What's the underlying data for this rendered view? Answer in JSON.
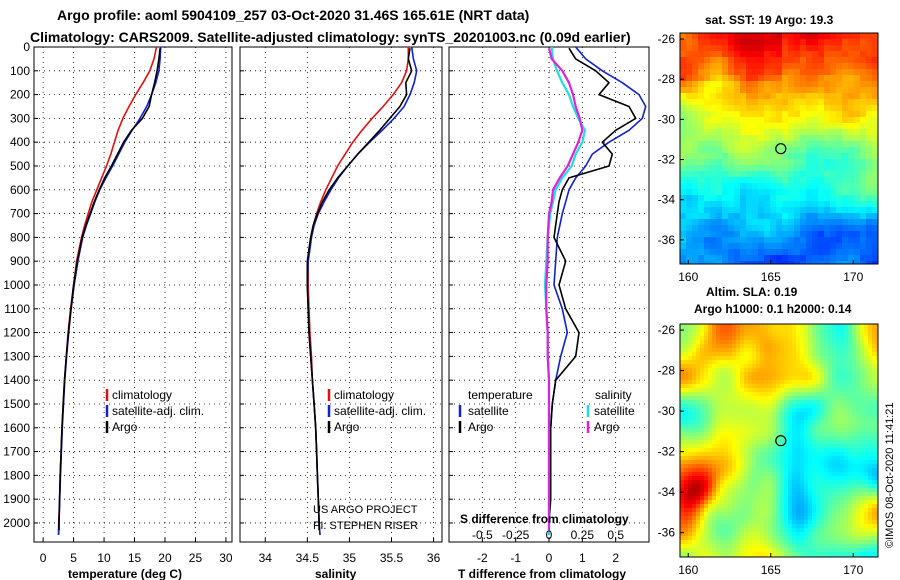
{
  "header": {
    "line1": "Argo profile: aoml 5904109_257 03-Oct-2020 31.46S 165.61E (NRT data)",
    "line2": "Climatology: CARS2009. Satellite-adjusted climatology: synTS_20201003.nc (0.09d earlier)"
  },
  "colors": {
    "climatology": "#dd1111",
    "satellite": "#1122cc",
    "argo": "#000000",
    "salinity_satellite": "#22dddd",
    "salinity_argo": "#dd22dd"
  },
  "depth_axis": {
    "ticks": [
      "0",
      "100",
      "200",
      "300",
      "400",
      "500",
      "600",
      "700",
      "800",
      "900",
      "1000",
      "1100",
      "1200",
      "1300",
      "1400",
      "1500",
      "1600",
      "1700",
      "1800",
      "1900",
      "2000"
    ],
    "range": [
      0,
      2080
    ]
  },
  "credits": {
    "project": "US ARGO PROJECT",
    "pi": "PI: STEPHEN RISER"
  },
  "chart_data": [
    {
      "type": "line",
      "panel": "temperature",
      "xlabel": "temperature (deg C)",
      "xlim": [
        -1.5,
        31
      ],
      "xticks": [
        "0",
        "5",
        "10",
        "15",
        "20",
        "25",
        "30"
      ],
      "ylim": [
        2080,
        0
      ],
      "legend": {
        "labels": [
          "climatology",
          "satellite-adj. clim.",
          "Argo"
        ]
      },
      "series": [
        {
          "name": "climatology",
          "color_key": "climatology",
          "depth": [
            0,
            50,
            100,
            150,
            200,
            250,
            300,
            350,
            400,
            450,
            500,
            550,
            600,
            650,
            700,
            750,
            800,
            900,
            1000,
            1100,
            1200,
            1300,
            1400,
            1500,
            1600,
            1700,
            1800,
            1900,
            2000,
            2050
          ],
          "values": [
            18.6,
            18.2,
            17.5,
            16.4,
            15.2,
            14.1,
            13.1,
            12.3,
            11.7,
            11.1,
            10.4,
            9.6,
            8.8,
            8.0,
            7.4,
            6.8,
            6.3,
            5.5,
            5.0,
            4.5,
            4.1,
            3.8,
            3.5,
            3.3,
            3.1,
            2.95,
            2.8,
            2.7,
            2.55,
            2.5
          ]
        },
        {
          "name": "satellite-adj. clim.",
          "color_key": "satellite",
          "depth": [
            0,
            50,
            100,
            150,
            200,
            250,
            300,
            350,
            400,
            450,
            500,
            550,
            600,
            650,
            700,
            750,
            800,
            900,
            1000,
            1100,
            1200,
            1300,
            1400,
            1500,
            1600,
            1700,
            1800,
            1900,
            2000,
            2050
          ],
          "values": [
            19.3,
            19.2,
            19.0,
            18.5,
            17.8,
            17.0,
            15.9,
            14.6,
            13.4,
            12.4,
            11.4,
            10.3,
            9.3,
            8.5,
            7.8,
            7.1,
            6.5,
            5.7,
            5.1,
            4.6,
            4.2,
            3.85,
            3.55,
            3.35,
            3.15,
            3.0,
            2.85,
            2.72,
            2.6,
            2.55
          ]
        },
        {
          "name": "Argo",
          "color_key": "argo",
          "depth": [
            5,
            50,
            100,
            150,
            200,
            250,
            300,
            350,
            400,
            450,
            500,
            550,
            600,
            650,
            700,
            750,
            800,
            900,
            1000,
            1100,
            1200,
            1300,
            1400,
            1500,
            1600,
            1700,
            1800,
            1900,
            2000,
            2030
          ],
          "values": [
            19.2,
            19.0,
            18.7,
            18.3,
            17.8,
            17.4,
            16.3,
            14.5,
            13.2,
            12.2,
            11.2,
            10.1,
            9.2,
            8.4,
            7.7,
            7.0,
            6.4,
            5.6,
            5.0,
            4.55,
            4.15,
            3.8,
            3.5,
            3.3,
            3.1,
            2.95,
            2.8,
            2.7,
            2.6,
            2.6
          ]
        }
      ]
    },
    {
      "type": "line",
      "panel": "salinity",
      "xlabel": "salinity",
      "xlim": [
        33.7,
        36.1
      ],
      "xticks": [
        "34",
        "34.5",
        "35",
        "35.5",
        "36"
      ],
      "ylim": [
        2080,
        0
      ],
      "legend": {
        "labels": [
          "climatology",
          "satellite-adj. clim.",
          "Argo"
        ]
      },
      "series": [
        {
          "name": "climatology",
          "color_key": "climatology",
          "depth": [
            0,
            50,
            100,
            150,
            200,
            250,
            300,
            350,
            400,
            450,
            500,
            550,
            600,
            650,
            700,
            750,
            800,
            850,
            900,
            1000,
            1100,
            1200,
            1300,
            1400,
            1500,
            1600,
            1700,
            1800,
            1900,
            2000,
            2050
          ],
          "values": [
            35.7,
            35.7,
            35.68,
            35.62,
            35.52,
            35.4,
            35.27,
            35.15,
            35.04,
            34.95,
            34.86,
            34.79,
            34.72,
            34.66,
            34.61,
            34.57,
            34.54,
            34.52,
            34.51,
            34.51,
            34.52,
            34.53,
            34.55,
            34.56,
            34.58,
            34.6,
            34.61,
            34.62,
            34.63,
            34.64,
            34.65
          ]
        },
        {
          "name": "satellite-adj. clim.",
          "color_key": "satellite",
          "depth": [
            0,
            50,
            100,
            150,
            200,
            250,
            300,
            350,
            400,
            450,
            500,
            550,
            600,
            650,
            700,
            750,
            800,
            850,
            900,
            1000,
            1100,
            1200,
            1300,
            1400,
            1500,
            1600,
            1700,
            1800,
            1900,
            2000,
            2050
          ],
          "values": [
            35.74,
            35.76,
            35.8,
            35.77,
            35.72,
            35.65,
            35.53,
            35.39,
            35.24,
            35.1,
            34.98,
            34.87,
            34.78,
            34.7,
            34.63,
            34.58,
            34.55,
            34.53,
            34.51,
            34.5,
            34.51,
            34.52,
            34.54,
            34.56,
            34.58,
            34.6,
            34.61,
            34.62,
            34.63,
            34.64,
            34.65
          ]
        },
        {
          "name": "Argo",
          "color_key": "argo",
          "depth": [
            5,
            50,
            100,
            150,
            200,
            250,
            300,
            350,
            400,
            450,
            500,
            550,
            600,
            650,
            700,
            750,
            800,
            850,
            900,
            1000,
            1100,
            1200,
            1300,
            1400,
            1500,
            1600,
            1700,
            1800,
            1900,
            2000,
            2030
          ],
          "values": [
            35.72,
            35.7,
            35.74,
            35.67,
            35.68,
            35.6,
            35.48,
            35.36,
            35.23,
            35.1,
            34.98,
            34.86,
            34.76,
            34.68,
            34.62,
            34.57,
            34.54,
            34.52,
            34.5,
            34.5,
            34.51,
            34.52,
            34.54,
            34.56,
            34.58,
            34.6,
            34.61,
            34.62,
            34.63,
            34.64,
            34.64
          ]
        }
      ]
    },
    {
      "type": "line",
      "panel": "difference",
      "xlabel": "T difference from climatology",
      "xlabel2": "S difference from climatology",
      "xlim": [
        -3.0,
        3.0
      ],
      "xticks": [
        "-2",
        "-1",
        "0",
        "1",
        "2"
      ],
      "xticks2": [
        "-0.5",
        "-0.25",
        "0",
        "0.25",
        "0.5"
      ],
      "ylim": [
        2080,
        0
      ],
      "legend": {
        "temperature_header": "temperature",
        "salinity_header": "salinity",
        "temperature_labels": [
          "satellite",
          "Argo"
        ],
        "salinity_labels": [
          "satellite",
          "Argo"
        ]
      },
      "series": [
        {
          "name": "temperature satellite",
          "color_key": "satellite",
          "depth": [
            0,
            50,
            100,
            150,
            200,
            250,
            300,
            350,
            400,
            450,
            500,
            550,
            600,
            650,
            700,
            800,
            900,
            1000,
            1100,
            1200,
            1300,
            1400,
            1500,
            1600,
            1700,
            1800,
            1900,
            2000,
            2050
          ],
          "values": [
            0.8,
            1.1,
            1.6,
            2.2,
            2.7,
            2.9,
            2.8,
            2.4,
            1.8,
            1.3,
            1.1,
            0.8,
            0.6,
            0.5,
            0.4,
            0.25,
            0.2,
            0.15,
            0.4,
            0.55,
            0.35,
            0.2,
            0.1,
            0.05,
            0.05,
            0.05,
            0.0,
            0.0,
            0.0
          ]
        },
        {
          "name": "temperature Argo",
          "color_key": "argo",
          "depth": [
            5,
            50,
            100,
            150,
            200,
            250,
            300,
            350,
            400,
            450,
            500,
            550,
            600,
            650,
            700,
            800,
            900,
            1000,
            1100,
            1200,
            1300,
            1400,
            1500,
            1600,
            1700,
            1800,
            1900,
            2000,
            2030
          ],
          "values": [
            0.6,
            0.8,
            1.4,
            1.8,
            1.5,
            2.4,
            2.6,
            2.0,
            1.6,
            1.9,
            1.8,
            0.6,
            0.4,
            0.3,
            0.25,
            0.15,
            0.5,
            0.3,
            0.5,
            0.9,
            0.8,
            0.2,
            0.1,
            0.05,
            0.05,
            0.05,
            0.05,
            0.0,
            0.0
          ]
        },
        {
          "name": "salinity satellite",
          "color_key": "salinity_satellite",
          "depth": [
            0,
            50,
            100,
            150,
            200,
            250,
            300,
            350,
            400,
            450,
            500,
            550,
            600,
            650,
            700,
            800,
            900,
            1000,
            1100,
            1200,
            1300,
            1400,
            1500,
            1600,
            1700,
            1800,
            1900,
            2000,
            2050
          ],
          "values": [
            0.02,
            0.03,
            0.06,
            0.1,
            0.15,
            0.18,
            0.22,
            0.27,
            0.25,
            0.2,
            0.17,
            0.1,
            0.05,
            0.03,
            0.01,
            -0.01,
            -0.02,
            -0.03,
            -0.02,
            -0.01,
            -0.01,
            0.0,
            0.0,
            0.0,
            0.0,
            0.0,
            0.0,
            0.0,
            0.0
          ]
        },
        {
          "name": "salinity Argo",
          "color_key": "salinity_argo",
          "depth": [
            5,
            50,
            100,
            150,
            200,
            250,
            300,
            350,
            400,
            450,
            500,
            550,
            600,
            650,
            700,
            800,
            900,
            1000,
            1100,
            1200,
            1300,
            1400,
            1500,
            1600,
            1700,
            1800,
            1900,
            2000,
            2030
          ],
          "values": [
            0.0,
            0.02,
            0.1,
            0.15,
            0.18,
            0.2,
            0.23,
            0.25,
            0.22,
            0.18,
            0.14,
            0.08,
            0.03,
            0.02,
            0.0,
            -0.01,
            -0.01,
            -0.02,
            -0.02,
            -0.01,
            -0.01,
            0.0,
            0.0,
            0.0,
            0.0,
            0.0,
            0.0,
            0.0,
            0.0
          ]
        }
      ]
    },
    {
      "type": "heatmap",
      "panel": "sst_map",
      "title": "sat. SST: 19 Argo: 19.3",
      "xlim": [
        159.5,
        171.5
      ],
      "ylim": [
        -37.2,
        -25.7
      ],
      "xticks": [
        "160",
        "165",
        "170"
      ],
      "yticks": [
        "-26",
        "-28",
        "-30",
        "-32",
        "-34",
        "-36"
      ],
      "argo_position": {
        "lon": 165.61,
        "lat": -31.46
      }
    },
    {
      "type": "heatmap",
      "panel": "sla_map",
      "title": "Altim. SLA: 0.19",
      "subtitle": "Argo h1000: 0.1 h2000: 0.14",
      "xlim": [
        159.5,
        171.5
      ],
      "ylim": [
        -37.2,
        -25.7
      ],
      "xticks": [
        "160",
        "165",
        "170"
      ],
      "yticks": [
        "-26",
        "-28",
        "-30",
        "-32",
        "-34",
        "-36"
      ],
      "argo_position": {
        "lon": 165.61,
        "lat": -31.46
      },
      "credit": "©IMOS 08-Oct-2020 11:41:21"
    }
  ]
}
